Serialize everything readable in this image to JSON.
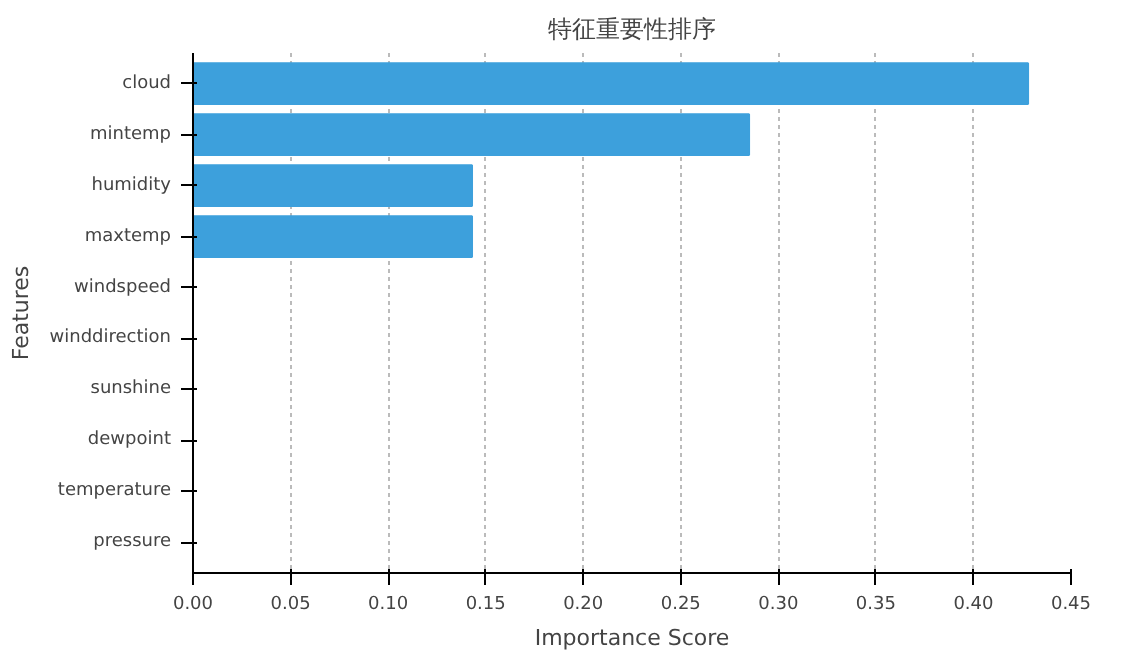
{
  "chart_data": {
    "type": "bar",
    "orientation": "horizontal",
    "title": "特征重要性排序",
    "xlabel": "Importance Score",
    "ylabel": "Features",
    "categories": [
      "cloud",
      "mintemp",
      "humidity",
      "maxtemp",
      "windspeed",
      "winddirection",
      "sunshine",
      "dewpoint",
      "temperature",
      "pressure"
    ],
    "values": [
      0.428,
      0.285,
      0.143,
      0.143,
      0,
      0,
      0,
      0,
      0,
      0
    ],
    "color": "#3da0dc",
    "xlim": [
      0,
      0.45
    ],
    "xticks": [
      {
        "value": 0,
        "label": "0.00"
      },
      0.05,
      {
        "value": 0.1,
        "label": "0.10"
      },
      0.15,
      {
        "value": 0.2,
        "label": "0.20"
      },
      0.25,
      {
        "value": 0.3,
        "label": "0.30"
      },
      0.35,
      {
        "value": 0.4,
        "label": "0.40"
      },
      0.45
    ],
    "grid": "x"
  }
}
